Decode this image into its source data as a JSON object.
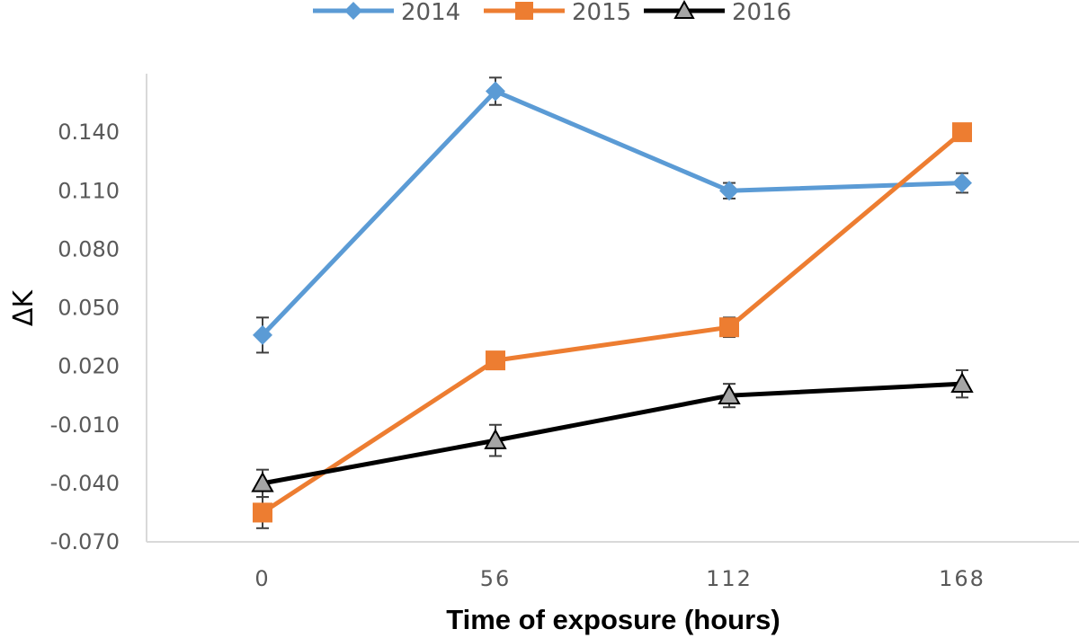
{
  "chart_data": {
    "type": "line",
    "title": "",
    "xlabel": "Time of exposure (hours)",
    "ylabel": "ΔK",
    "categories": [
      "0",
      "56",
      "112",
      "168"
    ],
    "x": [
      0,
      56,
      112,
      168
    ],
    "ylim": [
      -0.07,
      0.17
    ],
    "yticks": [
      -0.07,
      -0.04,
      -0.01,
      0.02,
      0.05,
      0.08,
      0.11,
      0.14
    ],
    "ytick_labels": [
      "-0.070",
      "-0.040",
      "-0.010",
      "0.020",
      "0.050",
      "0.080",
      "0.110",
      "0.140"
    ],
    "grid": false,
    "legend": "top",
    "series": [
      {
        "name": "2014",
        "color": "#5b9bd5",
        "marker": "diamond",
        "values": [
          0.036,
          0.161,
          0.11,
          0.114
        ],
        "errors": [
          0.009,
          0.007,
          0.004,
          0.005
        ]
      },
      {
        "name": "2015",
        "color": "#ed7d31",
        "marker": "square",
        "values": [
          -0.055,
          0.023,
          0.04,
          0.14
        ],
        "errors": [
          0.008,
          0.003,
          0.005,
          0.002
        ]
      },
      {
        "name": "2016",
        "color": "#000000",
        "marker_fill": "#a5a5a5",
        "marker": "triangle",
        "values": [
          -0.04,
          -0.018,
          0.005,
          0.011
        ],
        "errors": [
          0.007,
          0.008,
          0.006,
          0.007
        ]
      }
    ]
  }
}
